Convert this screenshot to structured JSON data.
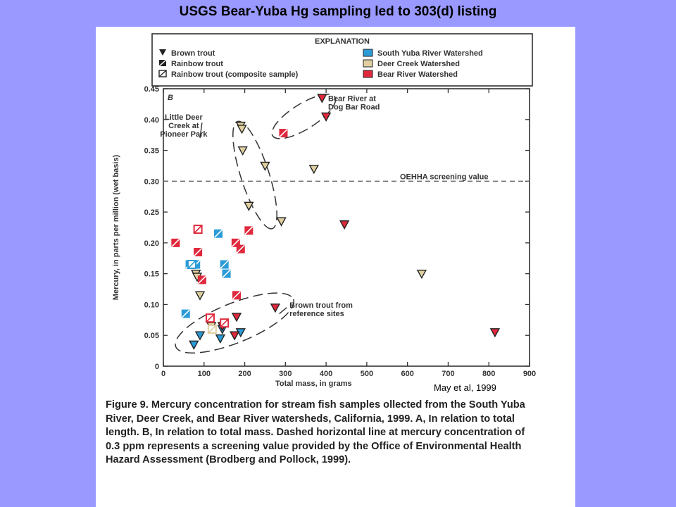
{
  "slide": {
    "title": "USGS Bear-Yuba Hg sampling led to 303(d) listing",
    "credit": "May et al, 1999"
  },
  "colors": {
    "slide_background": "#9999ff",
    "south_yuba": "#2a9bd8",
    "deer_creek": "#e0cfa0",
    "bear_river": "#e0283c"
  },
  "caption": {
    "lead": "Figure 9.",
    "text": "Mercury concentration for stream fish samples ollected from the South Yuba River, Deer Creek, and Bear River watersheds, California, 1999. A, In relation to total length. B, In relation to total mass. Dashed horizontal line at mercury concentration of 0.3 ppm represents a screening value provided by the Office of Environmental Health Hazard Assessment (Brodberg and Pollock, 1999)."
  },
  "chart_data": {
    "type": "scatter",
    "panel_label": "B",
    "xlabel": "Total mass, in grams",
    "ylabel": "Mercury, in parts per million (wet basis)",
    "xlim": [
      0,
      900
    ],
    "ylim": [
      0,
      0.45
    ],
    "xticks": [
      0,
      100,
      200,
      300,
      400,
      500,
      600,
      700,
      800,
      900
    ],
    "yticks": [
      "0",
      "0.05",
      "0.10",
      "0.15",
      "0.20",
      "0.25",
      "0.30",
      "0.35",
      "0.40",
      "0.45"
    ],
    "screening_value": 0.3,
    "screening_label": "OEHHA screening value",
    "legend": {
      "title": "EXPLANATION",
      "position": "top",
      "species": [
        {
          "label": "Brown trout",
          "marker": "brown"
        },
        {
          "label": "Rainbow trout",
          "marker": "rainbow"
        },
        {
          "label": "Rainbow trout (composite sample)",
          "marker": "composite"
        }
      ],
      "watersheds": [
        {
          "label": "South Yuba River Watershed",
          "color": "#2a9bd8"
        },
        {
          "label": "Deer Creek Watershed",
          "color": "#e0cfa0"
        },
        {
          "label": "Bear River Watershed",
          "color": "#e0283c"
        }
      ]
    },
    "annotations": [
      {
        "lines": [
          "Bear River at",
          "Dog Bar Road"
        ]
      },
      {
        "lines": [
          "Little Deer",
          "Creek at",
          "Pioneer Park"
        ]
      },
      {
        "lines": [
          "Brown trout from",
          "reference sites"
        ]
      }
    ],
    "series": [
      {
        "marker": "brown",
        "watershed": "south_yuba",
        "x": [
          75,
          90,
          140,
          145,
          190
        ],
        "y": [
          0.035,
          0.05,
          0.045,
          0.06,
          0.055
        ]
      },
      {
        "marker": "brown",
        "watershed": "deer_creek",
        "x": [
          80,
          83,
          90,
          118,
          190,
          193,
          195,
          210,
          250,
          290,
          370,
          635
        ],
        "y": [
          0.15,
          0.145,
          0.115,
          0.065,
          0.39,
          0.385,
          0.35,
          0.26,
          0.325,
          0.235,
          0.32,
          0.15
        ]
      },
      {
        "marker": "brown",
        "watershed": "bear_river",
        "x": [
          145,
          175,
          180,
          275,
          390,
          400,
          445,
          815
        ],
        "y": [
          0.065,
          0.05,
          0.08,
          0.095,
          0.435,
          0.405,
          0.23,
          0.055
        ]
      },
      {
        "marker": "rainbow",
        "watershed": "south_yuba",
        "x": [
          55,
          65,
          80,
          135,
          150,
          155
        ],
        "y": [
          0.085,
          0.165,
          0.165,
          0.215,
          0.165,
          0.15
        ]
      },
      {
        "marker": "rainbow",
        "watershed": "bear_river",
        "x": [
          30,
          85,
          95,
          150,
          178,
          180,
          190,
          210,
          295
        ],
        "y": [
          0.2,
          0.185,
          0.14,
          0.07,
          0.2,
          0.115,
          0.19,
          0.22,
          0.378
        ]
      },
      {
        "marker": "composite",
        "watershed": "south_yuba",
        "x": [
          70
        ],
        "y": [
          0.165
        ]
      },
      {
        "marker": "composite",
        "watershed": "deer_creek",
        "x": [
          120
        ],
        "y": [
          0.06
        ]
      },
      {
        "marker": "composite",
        "watershed": "bear_river",
        "x": [
          85,
          115,
          150
        ],
        "y": [
          0.222,
          0.078,
          0.07
        ]
      }
    ]
  }
}
